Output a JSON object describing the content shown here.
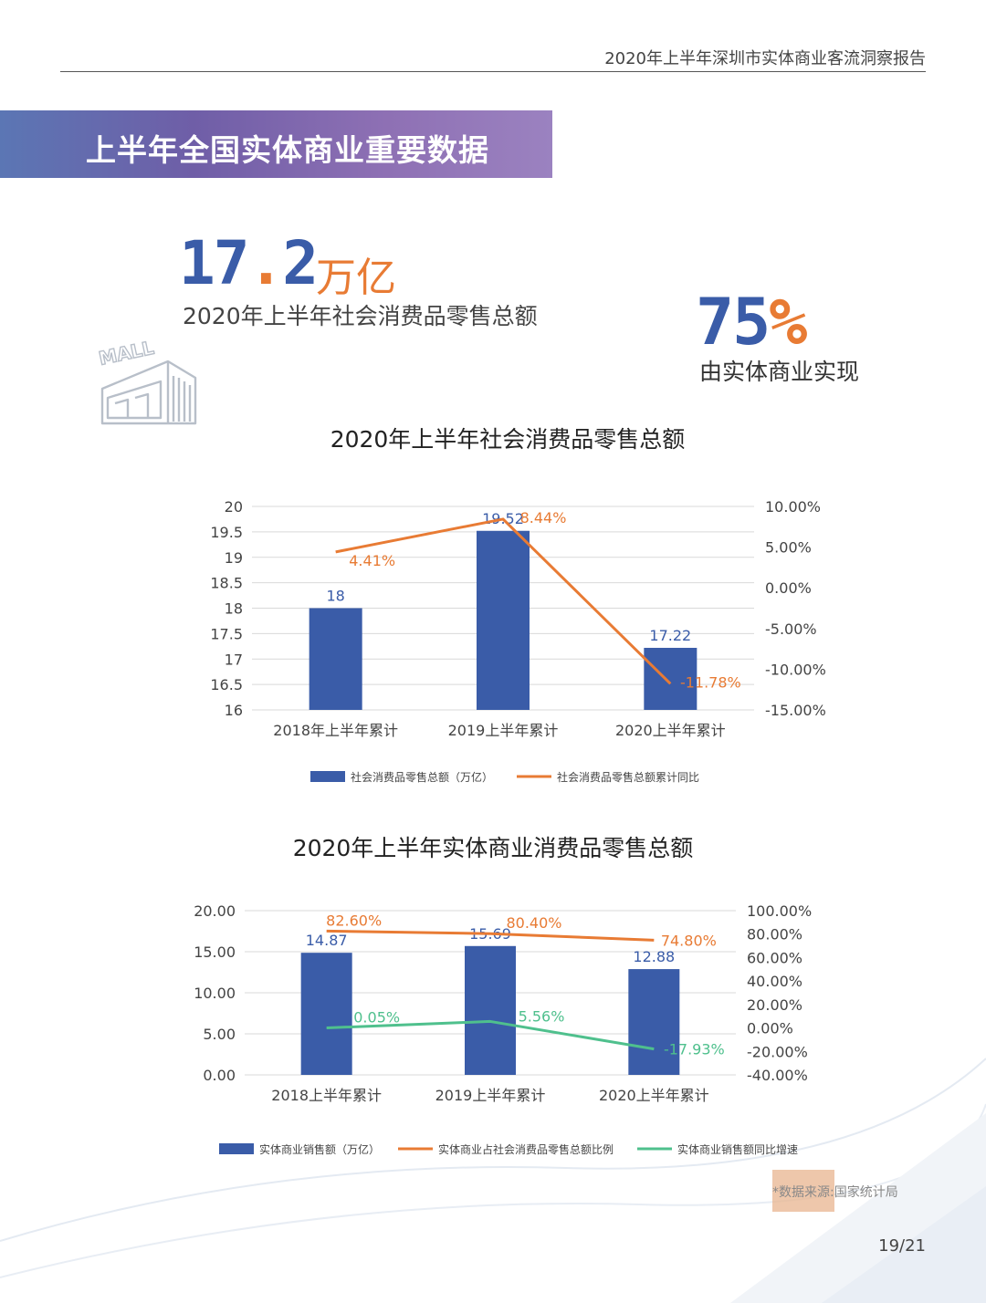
{
  "header": {
    "report_title": "2020年上半年深圳市实体商业客流洞察报告"
  },
  "section": {
    "title": "上半年全国实体商业重要数据"
  },
  "kpi": {
    "total_value_int": "17",
    "total_value_dot": ".",
    "total_value_dec": "2",
    "total_unit": "万亿",
    "total_label": "2020年上半年社会消费品零售总额",
    "share_value": "75",
    "share_pct": "%",
    "share_label": "由实体商业实现"
  },
  "illustration": {
    "sign_text": "MALL",
    "icon": "mall-building-icon"
  },
  "colors": {
    "bar": "#3a5ca8",
    "orange": "#e87b34",
    "green": "#4fc08d",
    "banner_start": "#5b76b4",
    "banner_end": "#9b82c0"
  },
  "chart_data": [
    {
      "type": "bar",
      "title": "2020年上半年社会消费品零售总额",
      "categories": [
        "2018年上半年累计",
        "2019上半年累计",
        "2020上半年累计"
      ],
      "series": [
        {
          "name": "社会消费品零售总额（万亿）",
          "type": "bar",
          "axis": "left",
          "values": [
            18,
            19.52,
            17.22
          ],
          "labels": [
            "18",
            "19.52",
            "17.22"
          ]
        },
        {
          "name": "社会消费品零售总额累计同比",
          "type": "line",
          "axis": "right",
          "values": [
            4.41,
            8.44,
            -11.78
          ],
          "labels": [
            "4.41%",
            "8.44%",
            "-11.78%"
          ]
        }
      ],
      "y_left": {
        "range": [
          16,
          20
        ],
        "ticks": [
          "16",
          "16.5",
          "17",
          "17.5",
          "18",
          "18.5",
          "19",
          "19.5",
          "20"
        ]
      },
      "y_right": {
        "range": [
          -15,
          10
        ],
        "ticks": [
          "-15.00%",
          "-10.00%",
          "-5.00%",
          "0.00%",
          "5.00%",
          "10.00%"
        ]
      },
      "grid": true,
      "legend": "bottom"
    },
    {
      "type": "bar",
      "title": "2020年上半年实体商业消费品零售总额",
      "categories": [
        "2018上半年累计",
        "2019上半年累计",
        "2020上半年累计"
      ],
      "series": [
        {
          "name": "实体商业销售额（万亿）",
          "type": "bar",
          "axis": "left",
          "values": [
            14.87,
            15.69,
            12.88
          ],
          "labels": [
            "14.87",
            "15.69",
            "12.88"
          ]
        },
        {
          "name": "实体商业占社会消费品零售总额比例",
          "type": "line",
          "axis": "right",
          "values": [
            82.6,
            80.4,
            74.8
          ],
          "labels": [
            "82.60%",
            "80.40%",
            "74.80%"
          ]
        },
        {
          "name": "实体商业销售额同比增速",
          "type": "line",
          "axis": "right",
          "values": [
            0.05,
            5.56,
            -17.93
          ],
          "labels": [
            "0.05%",
            "5.56%",
            "-17.93%"
          ]
        }
      ],
      "y_left": {
        "range": [
          0,
          20
        ],
        "ticks": [
          "0.00",
          "5.00",
          "10.00",
          "15.00",
          "20.00"
        ]
      },
      "y_right": {
        "range": [
          -40,
          100
        ],
        "ticks": [
          "-40.00%",
          "-20.00%",
          "0.00%",
          "20.00%",
          "40.00%",
          "60.00%",
          "80.00%",
          "100.00%"
        ]
      },
      "grid": true,
      "legend": "bottom"
    }
  ],
  "footer": {
    "source": "*数据来源:国家统计局",
    "page": "19/21"
  }
}
